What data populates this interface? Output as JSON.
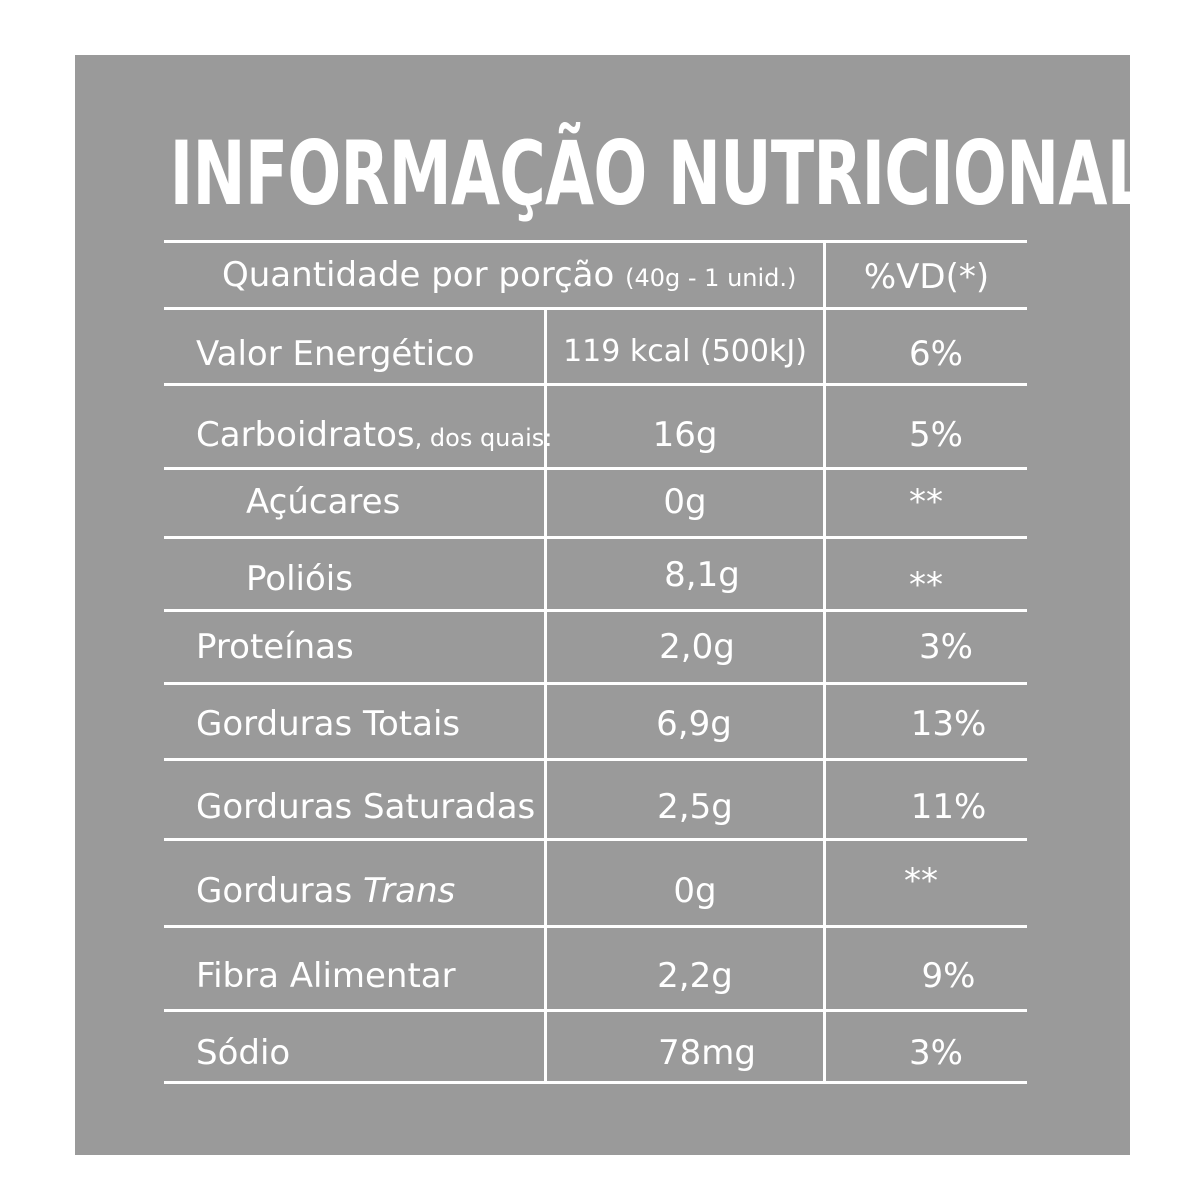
{
  "title": "INFORMAÇÃO NUTRICIONAL",
  "header": {
    "serving_label": "Quantidade por porção",
    "serving_size": "(40g - 1 unid.)",
    "dv_label": "%VD(*)"
  },
  "rows": [
    {
      "label": "Valor Energético",
      "amount": "119 kcal (500kJ)",
      "dv": "6%"
    },
    {
      "label": "Carboidratos",
      "label_suffix": ", dos quais:",
      "amount": "16g",
      "dv": "5%"
    },
    {
      "label": "Açúcares",
      "amount": "0g",
      "dv": "**"
    },
    {
      "label": "Polióis",
      "amount": "8,1g",
      "dv": "**"
    },
    {
      "label": "Proteínas",
      "amount": "2,0g",
      "dv": "3%"
    },
    {
      "label": "Gorduras Totais",
      "amount": "6,9g",
      "dv": "13%"
    },
    {
      "label": "Gorduras Saturadas",
      "amount": "2,5g",
      "dv": "11%"
    },
    {
      "label": "Gorduras ",
      "label_italic": "Trans",
      "amount": "0g",
      "dv": "**"
    },
    {
      "label": "Fibra Alimentar",
      "amount": "2,2g",
      "dv": "9%"
    },
    {
      "label": "Sódio",
      "amount": "78mg",
      "dv": "3%"
    }
  ]
}
